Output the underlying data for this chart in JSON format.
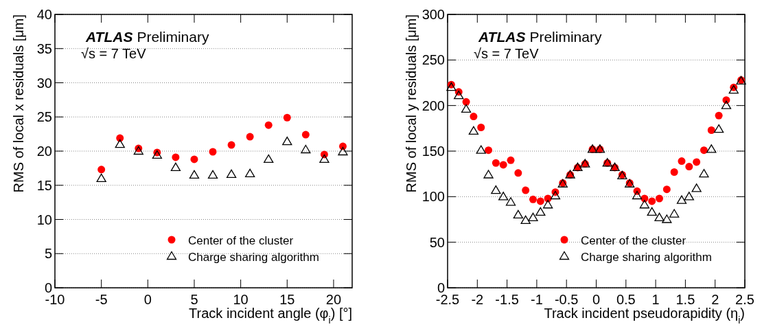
{
  "chart_data": [
    {
      "type": "scatter",
      "xlabel": "Track incident angle (φ$_{i}$) [°]",
      "ylabel": "RMS of local x residuals [μm]",
      "x": [
        -5,
        -3,
        -1,
        1,
        3,
        5,
        7,
        9,
        11,
        13,
        15,
        17,
        19,
        21
      ],
      "series": [
        {
          "name": "Center of the cluster",
          "color": "#ff0000",
          "marker": "circle",
          "values": [
            17.3,
            21.9,
            20.4,
            19.8,
            19.1,
            18.8,
            19.9,
            20.9,
            22.1,
            23.8,
            24.9,
            22.4,
            19.5,
            20.7
          ]
        },
        {
          "name": "Charge sharing algorithm",
          "color": "#000000",
          "marker": "triangle",
          "values": [
            16.0,
            21.0,
            20.0,
            19.4,
            17.6,
            16.5,
            16.5,
            16.6,
            16.7,
            18.8,
            21.4,
            20.2,
            18.8,
            19.9
          ]
        }
      ],
      "xlim": [
        -10,
        22
      ],
      "xticks": [
        -10,
        -5,
        0,
        5,
        10,
        15,
        20
      ],
      "ylim": [
        0,
        40
      ],
      "yticks": [
        0,
        5,
        10,
        15,
        20,
        25,
        30,
        35,
        40
      ],
      "grid": "y",
      "legend": "bottom right",
      "annotations": [
        "ATLAS",
        "Preliminary",
        "√s = 7 TeV"
      ]
    },
    {
      "type": "scatter",
      "xlabel": "Track incident pseudorapidity (η$_{i}$)",
      "ylabel": "RMS of local y residuals [μm]",
      "x": [
        -2.4375,
        -2.3125,
        -2.1875,
        -2.0625,
        -1.9375,
        -1.8125,
        -1.6875,
        -1.5625,
        -1.4375,
        -1.3125,
        -1.1875,
        -1.0625,
        -0.9375,
        -0.8125,
        -0.6875,
        -0.5625,
        -0.4375,
        -0.3125,
        -0.1875,
        -0.0625,
        0.0625,
        0.1875,
        0.3125,
        0.4375,
        0.5625,
        0.6875,
        0.8125,
        0.9375,
        1.0625,
        1.1875,
        1.3125,
        1.4375,
        1.5625,
        1.6875,
        1.8125,
        1.9375,
        2.0625,
        2.1875,
        2.3125,
        2.4375
      ],
      "series": [
        {
          "name": "Center of the cluster",
          "color": "#ff0000",
          "marker": "circle",
          "values": [
            223,
            215,
            204,
            188,
            176,
            151,
            137,
            135,
            140,
            126,
            107,
            97,
            95,
            98,
            105,
            115,
            124,
            132,
            136,
            152,
            152,
            137,
            132,
            124,
            115,
            106,
            98,
            95,
            98,
            108,
            127,
            139,
            133,
            138,
            151,
            173,
            189,
            206,
            220,
            228
          ]
        },
        {
          "name": "Charge sharing algorithm",
          "color": "#000000",
          "marker": "triangle",
          "values": [
            220,
            211,
            196,
            172,
            151,
            124,
            107,
            100,
            94,
            80,
            74,
            77,
            83,
            91,
            101,
            114,
            124,
            132,
            136,
            152,
            152,
            137,
            132,
            123,
            114,
            101,
            91,
            83,
            77,
            75,
            81,
            96,
            100,
            109,
            125,
            152,
            174,
            200,
            217,
            227
          ]
        }
      ],
      "xlim": [
        -2.5,
        2.5
      ],
      "xticks": [
        -2.5,
        -2,
        -1.5,
        -1,
        -0.5,
        0,
        0.5,
        1,
        1.5,
        2,
        2.5
      ],
      "ylim": [
        0,
        300
      ],
      "yticks": [
        0,
        50,
        100,
        150,
        200,
        250,
        300
      ],
      "grid": "y",
      "legend": "bottom right",
      "annotations": [
        "ATLAS",
        "Preliminary",
        "√s = 7 TeV"
      ]
    }
  ]
}
